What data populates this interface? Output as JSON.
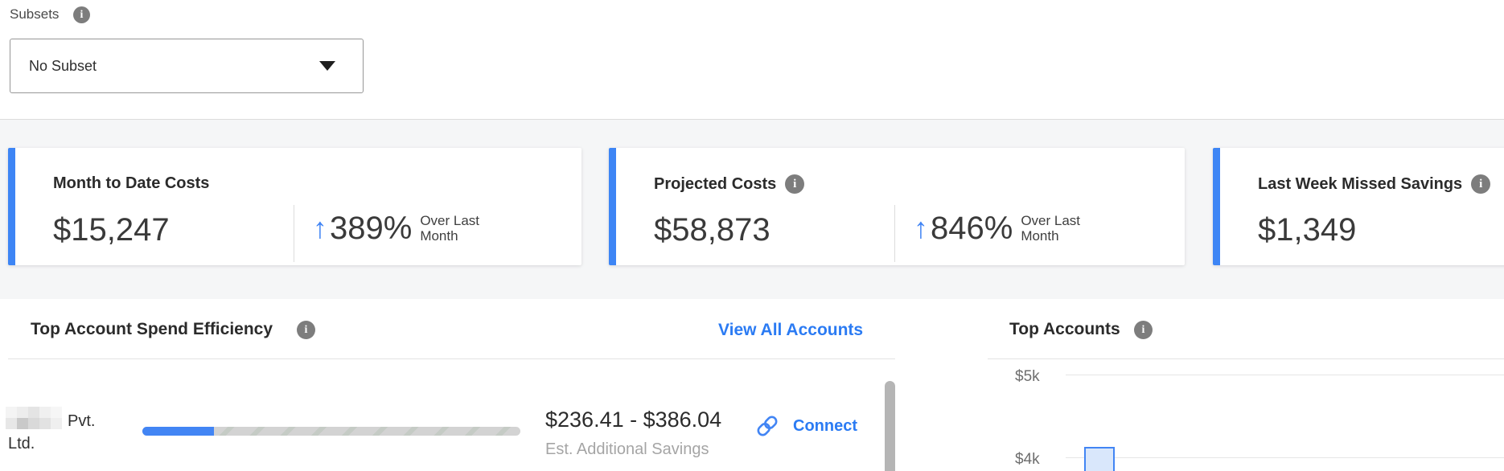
{
  "glyphs": {
    "info": "i",
    "arrow_up": "↑"
  },
  "colors": {
    "accent_blue": "#3d85f5",
    "arrow_blue": "#4285f4",
    "link_blue": "#2b7bf3",
    "info_gray": "#7d7d7d",
    "bar_fill": "#d9e7fb",
    "band_bg": "#f5f6f7"
  },
  "subsets": {
    "label": "Subsets",
    "selected": "No Subset"
  },
  "metric_cards": [
    {
      "title": "Month to Date Costs",
      "value": "$15,247",
      "change_pct": "389%",
      "change_caption": [
        "Over Last",
        "Month"
      ],
      "change_direction": "up"
    },
    {
      "title": "Projected Costs",
      "value": "$58,873",
      "change_pct": "846%",
      "change_caption": [
        "Over Last",
        "Month"
      ],
      "change_direction": "up",
      "has_info": true
    },
    {
      "title": "Last Week Missed Savings",
      "value": "$1,349",
      "has_info": true
    }
  ],
  "spend_efficiency": {
    "title": "Top Account Spend Efficiency",
    "view_all": "View All Accounts",
    "row": {
      "account_name_redacted": true,
      "account_name_line1": "Pvt.",
      "account_name_line2": "Ltd.",
      "progress_pct": 19,
      "savings_range": "$236.41 - $386.04",
      "savings_caption": "Est. Additional Savings",
      "connect": "Connect"
    }
  },
  "top_accounts": {
    "title": "Top Accounts",
    "ytick_labels": [
      "$5k",
      "$4k"
    ]
  },
  "chart_data": {
    "type": "bar",
    "title": "Top Accounts",
    "ylabel": "",
    "ytick_labels": [
      "$5k",
      "$4k"
    ],
    "ylim_visible": [
      4000,
      5000
    ],
    "grid": true,
    "visible_values": [
      4100
    ],
    "note": "chart cropped by bottom edge of screenshot; only the top of the first bar (~$4.1k) is visible"
  }
}
